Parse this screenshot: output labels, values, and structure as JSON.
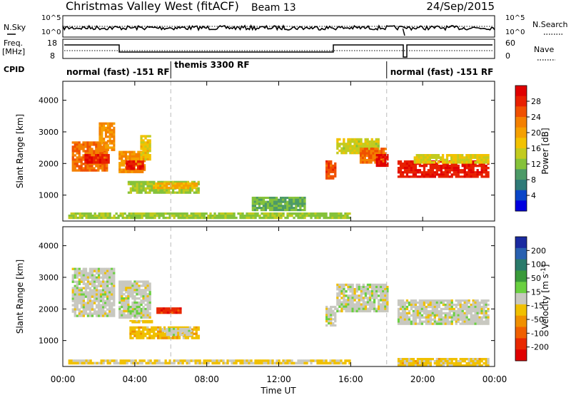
{
  "header": {
    "title": "Christmas Valley West (fitACF)",
    "beam": "Beam 13",
    "date": "24/Sep/2015"
  },
  "top_panels": {
    "nsky_label": "N.Sky",
    "nsearch_label": "N.Search",
    "freq_label_1": "Freq.",
    "freq_label_2": "[MHz]",
    "nave_label": "Nave",
    "cpid_label": "CPID",
    "nsky_ticks": [
      "10^5",
      "10^0"
    ],
    "nsearch_ticks": [
      "10^5",
      "10^0"
    ],
    "freq_ticks": [
      "18",
      "8"
    ],
    "nave_ticks": [
      "60",
      "0"
    ],
    "cpid_segments": [
      {
        "start": 0.0,
        "end": 6.0,
        "label": "normal (fast) -151 RF"
      },
      {
        "start": 6.0,
        "end": 18.0,
        "label": "themis 3300 RF"
      },
      {
        "start": 18.0,
        "end": 24.0,
        "label": "normal (fast) -151 RF"
      }
    ]
  },
  "x_axis": {
    "title": "Time UT",
    "tick_labels": [
      "00:00",
      "04:00",
      "08:00",
      "12:00",
      "16:00",
      "20:00",
      "00:00"
    ],
    "ticks_hours": [
      0,
      4,
      8,
      12,
      16,
      20,
      24
    ]
  },
  "power_colorbar": {
    "title": "Power [dB]",
    "tick_labels": [
      "28",
      "24",
      "20",
      "16",
      "12",
      "8",
      "4"
    ],
    "colors": [
      "#0000e0",
      "#0a46c8",
      "#2f7a78",
      "#4c9a67",
      "#85c23a",
      "#c2cb1e",
      "#f2c200",
      "#f5a000",
      "#f48000",
      "#f05000",
      "#e82000",
      "#e00000"
    ]
  },
  "velocity_colorbar": {
    "title": "Velocity [m s^-1]",
    "tick_labels": [
      "200",
      "100",
      "50",
      "15",
      "-15",
      "-50",
      "-100",
      "-200"
    ],
    "colors": [
      "#1a2aa0",
      "#2860b0",
      "#2a7a6a",
      "#3a9a3a",
      "#6ad040",
      "#c8c8c0",
      "#f0c000",
      "#f09000",
      "#f06000",
      "#e82800",
      "#e00000"
    ]
  },
  "chart_data": [
    {
      "type": "heatmap",
      "name": "power",
      "ylabel": "Slant Range [km]",
      "xlabel": "",
      "xlim": [
        0,
        24
      ],
      "ylim": [
        180,
        4600
      ],
      "ytick_labels": [
        "1000",
        "2000",
        "3000",
        "4000"
      ],
      "yticks": [
        1000,
        2000,
        3000,
        4000
      ],
      "colorbar": "Power [dB]",
      "clim": [
        0,
        30
      ],
      "patches": [
        {
          "t0": 0.5,
          "t1": 2.5,
          "r0": 1750,
          "r1": 2700,
          "value": 22
        },
        {
          "t0": 1.2,
          "t1": 2.6,
          "r0": 2000,
          "r1": 2300,
          "value": 27
        },
        {
          "t0": 2.0,
          "t1": 2.9,
          "r0": 2400,
          "r1": 3300,
          "value": 20
        },
        {
          "t0": 3.1,
          "t1": 4.6,
          "r0": 1700,
          "r1": 2400,
          "value": 20
        },
        {
          "t0": 3.5,
          "t1": 4.5,
          "r0": 1800,
          "r1": 2100,
          "value": 27
        },
        {
          "t0": 4.3,
          "t1": 4.9,
          "r0": 2100,
          "r1": 2900,
          "value": 16
        },
        {
          "t0": 3.6,
          "t1": 7.6,
          "r0": 1050,
          "r1": 1450,
          "value": 12
        },
        {
          "t0": 5.0,
          "t1": 7.5,
          "r0": 1200,
          "r1": 1400,
          "value": 18
        },
        {
          "t0": 14.6,
          "t1": 15.2,
          "r0": 1500,
          "r1": 2100,
          "value": 24
        },
        {
          "t0": 15.2,
          "t1": 17.6,
          "r0": 2300,
          "r1": 2800,
          "value": 14
        },
        {
          "t0": 16.5,
          "t1": 18.0,
          "r0": 2000,
          "r1": 2500,
          "value": 22
        },
        {
          "t0": 17.4,
          "t1": 18.1,
          "r0": 1900,
          "r1": 2300,
          "value": 28
        },
        {
          "t0": 18.6,
          "t1": 23.7,
          "r0": 1550,
          "r1": 2100,
          "value": 27
        },
        {
          "t0": 19.5,
          "t1": 23.7,
          "r0": 2000,
          "r1": 2300,
          "value": 15
        },
        {
          "t0": 0.3,
          "t1": 16.0,
          "r0": 250,
          "r1": 450,
          "value": 12
        },
        {
          "t0": 10.5,
          "t1": 13.5,
          "r0": 500,
          "r1": 950,
          "value": 10
        }
      ]
    },
    {
      "type": "heatmap",
      "name": "velocity",
      "ylabel": "Slant Range [km]",
      "xlabel": "Time UT",
      "xlim": [
        0,
        24
      ],
      "ylim": [
        180,
        4600
      ],
      "ytick_labels": [
        "1000",
        "2000",
        "3000",
        "4000"
      ],
      "yticks": [
        1000,
        2000,
        3000,
        4000
      ],
      "colorbar": "Velocity [m s^-1]",
      "clim": [
        -250,
        250
      ],
      "patches": [
        {
          "t0": 0.5,
          "t1": 2.9,
          "r0": 1750,
          "r1": 3300,
          "value": 0
        },
        {
          "t0": 3.1,
          "t1": 4.9,
          "r0": 1700,
          "r1": 2900,
          "value": 0
        },
        {
          "t0": 3.6,
          "t1": 4.3,
          "r0": 1750,
          "r1": 2100,
          "value": 30
        },
        {
          "t0": 5.2,
          "t1": 6.6,
          "r0": 1850,
          "r1": 2050,
          "value": -180
        },
        {
          "t0": 3.7,
          "t1": 7.6,
          "r0": 1050,
          "r1": 1450,
          "value": -50
        },
        {
          "t0": 5.5,
          "t1": 7.2,
          "r0": 1150,
          "r1": 1400,
          "value": 0
        },
        {
          "t0": 3.7,
          "t1": 5.0,
          "r0": 1550,
          "r1": 1650,
          "value": -40
        },
        {
          "t0": 0.3,
          "t1": 16.0,
          "r0": 250,
          "r1": 400,
          "value": -30
        },
        {
          "t0": 14.6,
          "t1": 15.2,
          "r0": 1450,
          "r1": 2100,
          "value": 0
        },
        {
          "t0": 15.2,
          "t1": 18.1,
          "r0": 1900,
          "r1": 2800,
          "value": 0
        },
        {
          "t0": 18.6,
          "t1": 23.7,
          "r0": 1500,
          "r1": 2300,
          "value": 0
        },
        {
          "t0": 18.6,
          "t1": 23.7,
          "r0": 180,
          "r1": 450,
          "value": -40
        }
      ]
    }
  ]
}
